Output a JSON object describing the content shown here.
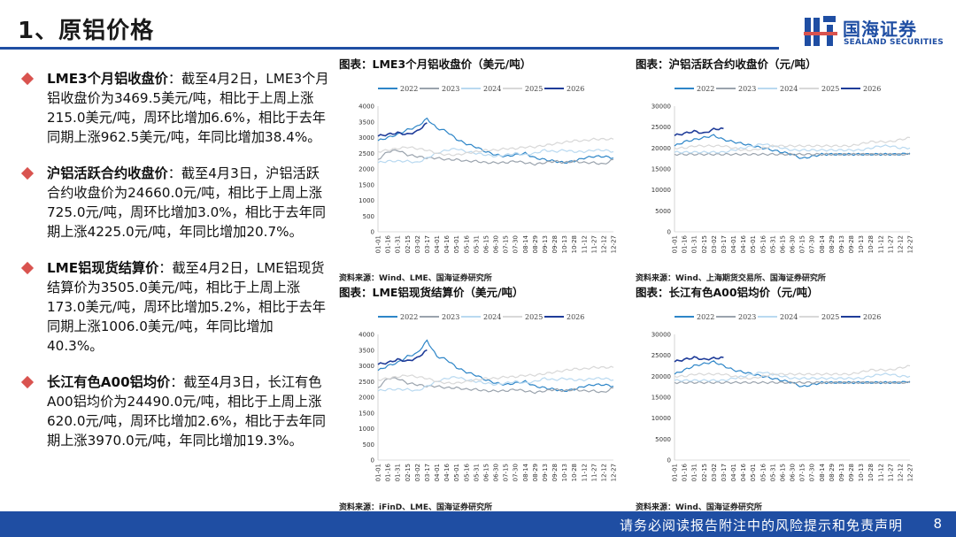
{
  "page": {
    "title": "1、原铝价格",
    "page_number": "8",
    "footer_disclaimer": "请务必阅读报告附注中的风险提示和免责声明"
  },
  "logo": {
    "name_cn": "国海证券",
    "name_en": "SEALAND SECURITIES"
  },
  "colors": {
    "brand_blue": "#1f4ea3",
    "bullet_red": "#d9534f",
    "series": {
      "2022": "#2e86c8",
      "2023": "#9aa3ad",
      "2024": "#b9d9f0",
      "2025": "#d8d8d8",
      "2026": "#1f3c99"
    }
  },
  "bullets": [
    {
      "head": "LME3个月铝收盘价",
      "body": "：截至4月2日，LME3个月铝收盘价为3469.5美元/吨，相比于上周上涨215.0美元/吨，周环比增加6.6%，相比于去年同期上涨962.5美元/吨，年同比增加38.4%。"
    },
    {
      "head": "沪铝活跃合约收盘价",
      "body": "：截至4月3日，沪铝活跃合约收盘价为24660.0元/吨，相比于上周上涨725.0元/吨，周环比增加3.0%，相比于去年同期上涨4225.0元/吨，年同比增加20.7%。"
    },
    {
      "head": "LME铝现货结算价",
      "body": "：截至4月2日，LME铝现货结算价为3505.0美元/吨，相比于上周上涨173.0美元/吨，周环比增加5.2%，相比于去年同期上涨1006.0美元/吨，年同比增加40.3%。"
    },
    {
      "head": "长江有色A00铝均价",
      "body": "：截至4月3日，长江有色A00铝均价为24490.0元/吨，相比于上周上涨620.0元/吨，周环比增加2.6%，相比于去年同期上涨3970.0元/吨，年同比增加19.3%。"
    }
  ],
  "chart_data": [
    {
      "type": "line",
      "title": "图表：LME3个月铝收盘价（美元/吨）",
      "source": "资料来源：Wind、LME、国海证券研究所",
      "series_names": [
        "2022",
        "2023",
        "2024",
        "2025",
        "2026"
      ],
      "x_ticks": [
        "01-01",
        "01-16",
        "01-31",
        "02-15",
        "03-02",
        "03-17",
        "04-01",
        "04-16",
        "05-01",
        "05-16",
        "05-31",
        "06-15",
        "06-30",
        "07-15",
        "07-30",
        "08-14",
        "08-29",
        "09-13",
        "09-28",
        "10-13",
        "10-28",
        "11-12",
        "11-27",
        "12-12",
        "12-27"
      ],
      "ylim": [
        0,
        4000
      ],
      "y_ticks": [
        0,
        500,
        1000,
        1500,
        2000,
        2500,
        3000,
        3500,
        4000
      ],
      "x_label_index": [
        0,
        4,
        8,
        12,
        16,
        20,
        24
      ],
      "series": [
        {
          "name": "2022",
          "values": [
            2900,
            3000,
            3100,
            3250,
            3350,
            3600,
            3300,
            3200,
            2950,
            2800,
            2700,
            2550,
            2450,
            2400,
            2450,
            2500,
            2350,
            2300,
            2250,
            2200,
            2250,
            2350,
            2400,
            2400,
            2350
          ]
        },
        {
          "name": "2023",
          "values": [
            2300,
            2550,
            2600,
            2450,
            2400,
            2350,
            2350,
            2300,
            2300,
            2250,
            2250,
            2200,
            2200,
            2200,
            2250,
            2200,
            2150,
            2200,
            2250,
            2200,
            2250,
            2200,
            2200,
            2150,
            2300
          ]
        },
        {
          "name": "2024",
          "values": [
            2200,
            2250,
            2250,
            2250,
            2200,
            2350,
            2500,
            2600,
            2650,
            2550,
            2500,
            2450,
            2400,
            2450,
            2500,
            2450,
            2500,
            2600,
            2550,
            2600,
            2550,
            2550,
            2600,
            2600,
            2550
          ]
        },
        {
          "name": "2025",
          "values": [
            2550,
            2600,
            2650,
            2700,
            2650,
            2600,
            2500,
            2450,
            2450,
            2500,
            2550,
            2600,
            2600,
            2650,
            2650,
            2700,
            2700,
            2750,
            2800,
            2850,
            2900,
            2900,
            2950,
            2950,
            2950
          ]
        },
        {
          "name": "2026",
          "values": [
            3050,
            3100,
            3150,
            3100,
            3200,
            3470
          ]
        }
      ]
    },
    {
      "type": "line",
      "title": "图表：沪铝活跃合约收盘价（元/吨）",
      "source": "资料来源：Wind、上海期货交易所、国海证券研究所",
      "series_names": [
        "2022",
        "2023",
        "2024",
        "2025",
        "2026"
      ],
      "x_ticks": [
        "01-01",
        "01-16",
        "01-31",
        "02-15",
        "03-02",
        "03-17",
        "04-01",
        "04-16",
        "05-01",
        "05-16",
        "05-31",
        "06-15",
        "06-30",
        "07-15",
        "07-30",
        "08-14",
        "08-29",
        "09-13",
        "09-28",
        "10-13",
        "10-28",
        "11-12",
        "11-27",
        "12-12",
        "12-27"
      ],
      "ylim": [
        0,
        30000
      ],
      "y_ticks": [
        0,
        5000,
        10000,
        15000,
        20000,
        25000,
        30000
      ],
      "x_label_index": [
        0,
        4,
        8,
        12,
        16,
        20,
        24
      ],
      "series": [
        {
          "name": "2022",
          "values": [
            20500,
            21500,
            22000,
            22500,
            23000,
            22000,
            21500,
            21000,
            20500,
            20000,
            19500,
            19000,
            18500,
            17500,
            18000,
            18500,
            18500,
            18500,
            18500,
            18500,
            18500,
            18500,
            18500,
            18500,
            18800
          ]
        },
        {
          "name": "2023",
          "values": [
            18500,
            18500,
            18500,
            18500,
            18500,
            18500,
            18500,
            18500,
            18500,
            18500,
            18500,
            18500,
            18500,
            18500,
            18500,
            18500,
            18500,
            18500,
            18500,
            18500,
            18500,
            18500,
            18500,
            18500,
            18500
          ]
        },
        {
          "name": "2024",
          "values": [
            19000,
            19000,
            19000,
            19000,
            19000,
            19000,
            19500,
            20000,
            20500,
            21000,
            20500,
            20000,
            19500,
            19500,
            19500,
            19500,
            19500,
            19500,
            19500,
            19500,
            20000,
            20500,
            20500,
            20000,
            20000
          ]
        },
        {
          "name": "2025",
          "values": [
            20000,
            20000,
            20500,
            20500,
            20500,
            20500,
            20000,
            19500,
            19500,
            20000,
            20500,
            20500,
            20500,
            20500,
            20500,
            20500,
            20500,
            20500,
            20500,
            21000,
            21500,
            21500,
            21500,
            22000,
            22500
          ]
        },
        {
          "name": "2026",
          "values": [
            23000,
            23500,
            24000,
            23500,
            24500,
            24660
          ]
        }
      ]
    },
    {
      "type": "line",
      "title": "图表：LME铝现货结算价（美元/吨）",
      "source": "资料来源：iFinD、LME、国海证券研究所",
      "series_names": [
        "2022",
        "2023",
        "2024",
        "2025",
        "2026"
      ],
      "x_ticks": [
        "01-01",
        "01-16",
        "01-31",
        "02-15",
        "03-02",
        "03-17",
        "04-01",
        "04-16",
        "05-01",
        "05-16",
        "05-31",
        "06-15",
        "06-30",
        "07-15",
        "07-30",
        "08-14",
        "08-29",
        "09-13",
        "09-28",
        "10-13",
        "10-28",
        "11-12",
        "11-27",
        "12-12",
        "12-27"
      ],
      "ylim": [
        0,
        4000
      ],
      "y_ticks": [
        0,
        500,
        1000,
        1500,
        2000,
        2500,
        3000,
        3500,
        4000
      ],
      "x_label_index": [
        0,
        4,
        8,
        12,
        16,
        20,
        24
      ],
      "series": [
        {
          "name": "2022",
          "values": [
            2850,
            3000,
            3100,
            3300,
            3400,
            3800,
            3300,
            3200,
            2950,
            2800,
            2700,
            2550,
            2450,
            2400,
            2450,
            2500,
            2350,
            2300,
            2250,
            2200,
            2250,
            2350,
            2400,
            2400,
            2350
          ]
        },
        {
          "name": "2023",
          "values": [
            2300,
            2600,
            2600,
            2450,
            2400,
            2350,
            2350,
            2300,
            2300,
            2250,
            2250,
            2200,
            2200,
            2200,
            2250,
            2200,
            2150,
            2200,
            2250,
            2200,
            2250,
            2200,
            2200,
            2150,
            2300
          ]
        },
        {
          "name": "2024",
          "values": [
            2200,
            2250,
            2250,
            2250,
            2200,
            2350,
            2500,
            2600,
            2650,
            2550,
            2500,
            2450,
            2400,
            2450,
            2500,
            2450,
            2500,
            2600,
            2550,
            2600,
            2550,
            2550,
            2600,
            2600,
            2550
          ]
        },
        {
          "name": "2025",
          "values": [
            2550,
            2600,
            2650,
            2700,
            2650,
            2600,
            2500,
            2450,
            2450,
            2500,
            2550,
            2600,
            2600,
            2650,
            2650,
            2700,
            2700,
            2750,
            2800,
            2850,
            2900,
            2900,
            2950,
            2950,
            2950
          ]
        },
        {
          "name": "2026",
          "values": [
            3050,
            3100,
            3200,
            3150,
            3250,
            3505
          ]
        }
      ]
    },
    {
      "type": "line",
      "title": "图表：长江有色A00铝均价（元/吨）",
      "source": "资料来源：Wind、国海证券研究所",
      "series_names": [
        "2022",
        "2023",
        "2024",
        "2025",
        "2026"
      ],
      "x_ticks": [
        "01-01",
        "01-16",
        "01-31",
        "02-15",
        "03-02",
        "03-17",
        "04-01",
        "04-16",
        "05-01",
        "05-16",
        "05-31",
        "06-15",
        "06-30",
        "07-15",
        "07-30",
        "08-14",
        "08-29",
        "09-13",
        "09-28",
        "10-13",
        "10-28",
        "11-12",
        "11-27",
        "12-12",
        "12-27"
      ],
      "ylim": [
        0,
        30000
      ],
      "y_ticks": [
        0,
        5000,
        10000,
        15000,
        20000,
        25000,
        30000
      ],
      "x_label_index": [
        0,
        4,
        8,
        12,
        16,
        20,
        24
      ],
      "series": [
        {
          "name": "2022",
          "values": [
            20500,
            21500,
            22500,
            23000,
            23500,
            22500,
            21500,
            21000,
            20500,
            20000,
            19500,
            19000,
            18500,
            17500,
            18000,
            18500,
            18500,
            18500,
            18500,
            18500,
            18500,
            18500,
            18500,
            18500,
            18800
          ]
        },
        {
          "name": "2023",
          "values": [
            18500,
            18500,
            18500,
            18500,
            18500,
            18500,
            18500,
            18500,
            18500,
            18500,
            18500,
            18500,
            18500,
            18500,
            18500,
            18500,
            18500,
            18500,
            18500,
            18500,
            18500,
            18500,
            18500,
            18500,
            18500
          ]
        },
        {
          "name": "2024",
          "values": [
            19000,
            19000,
            19000,
            19000,
            19000,
            19000,
            19500,
            20000,
            20500,
            21000,
            20500,
            20000,
            19500,
            19500,
            19500,
            19500,
            19500,
            19500,
            19500,
            19500,
            20000,
            20500,
            20500,
            20000,
            20000
          ]
        },
        {
          "name": "2025",
          "values": [
            20000,
            20000,
            20500,
            20500,
            20500,
            20500,
            20000,
            19500,
            19500,
            20000,
            20500,
            20500,
            20500,
            20500,
            20500,
            20500,
            20500,
            20500,
            20500,
            21000,
            21500,
            21500,
            21500,
            22000,
            22500
          ]
        },
        {
          "name": "2026",
          "values": [
            23500,
            24000,
            24500,
            24000,
            24300,
            24490
          ]
        }
      ]
    }
  ]
}
